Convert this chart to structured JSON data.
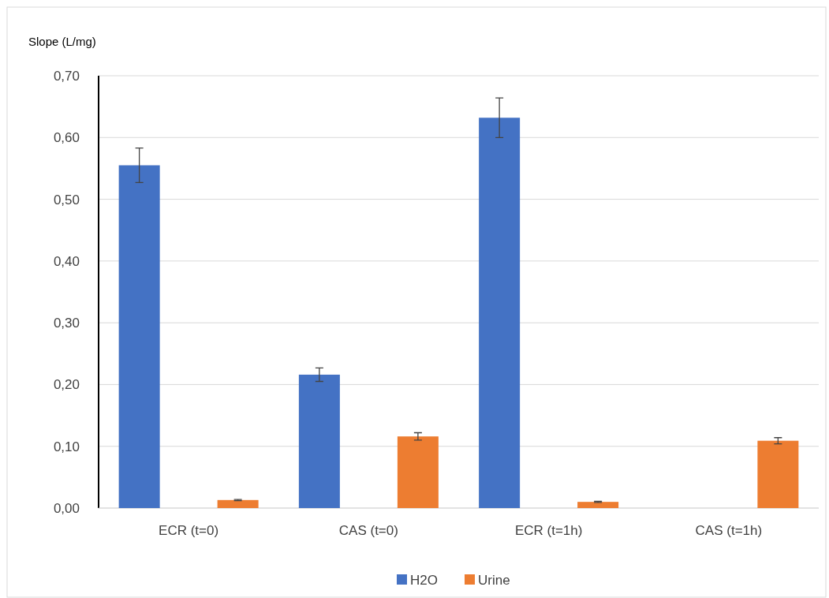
{
  "chart_data": {
    "type": "bar",
    "ylabel": "Slope  (L/mg)",
    "categories": [
      "ECR (t=0)",
      "CAS (t=0)",
      "ECR (t=1h)",
      "CAS (t=1h)"
    ],
    "series": [
      {
        "name": "H2O",
        "color": "#4472c4",
        "values": [
          0.555,
          0.216,
          0.632,
          null
        ],
        "errors": [
          0.028,
          0.011,
          0.032,
          null
        ]
      },
      {
        "name": "Urine",
        "color": "#ed7d31",
        "values": [
          0.013,
          0.116,
          0.01,
          0.109
        ],
        "errors": [
          0.001,
          0.006,
          0.001,
          0.005
        ]
      }
    ],
    "ylim": [
      0,
      0.7
    ],
    "yticks": [
      {
        "value": 0,
        "label": "0,00"
      },
      {
        "value": 0.1,
        "label": "0,10"
      },
      {
        "value": 0.2,
        "label": "0,20"
      },
      {
        "value": 0.3,
        "label": "0,30"
      },
      {
        "value": 0.4,
        "label": "0,40"
      },
      {
        "value": 0.5,
        "label": "0,50"
      },
      {
        "value": 0.6,
        "label": "0,60"
      },
      {
        "value": 0.7,
        "label": "0,70"
      }
    ],
    "grid": "y",
    "legend": "bottom"
  }
}
